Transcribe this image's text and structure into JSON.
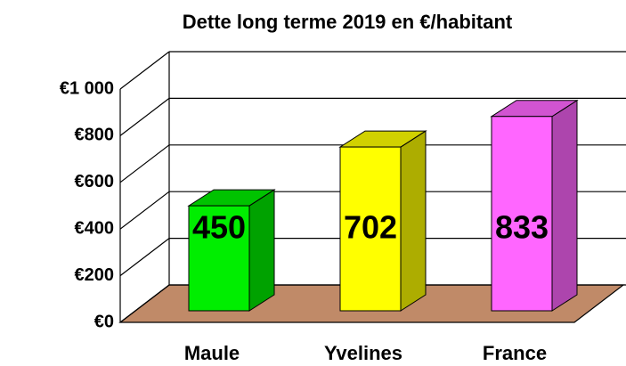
{
  "chart_data": {
    "type": "bar3d",
    "title": "Dette long terme 2019 en €/habitant",
    "categories": [
      "Maule",
      "Yvelines",
      "France"
    ],
    "values": [
      450,
      702,
      833
    ],
    "colors": [
      "#00ee00",
      "#ffff00",
      "#ff66ff"
    ],
    "ylim": [
      0,
      1000
    ],
    "yticks": [
      {
        "value": 0,
        "label": "€0"
      },
      {
        "value": 200,
        "label": "€200"
      },
      {
        "value": 400,
        "label": "€400"
      },
      {
        "value": 600,
        "label": "€600"
      },
      {
        "value": 800,
        "label": "€800"
      },
      {
        "value": 1000,
        "label": "€1 000"
      }
    ],
    "grid": true
  }
}
